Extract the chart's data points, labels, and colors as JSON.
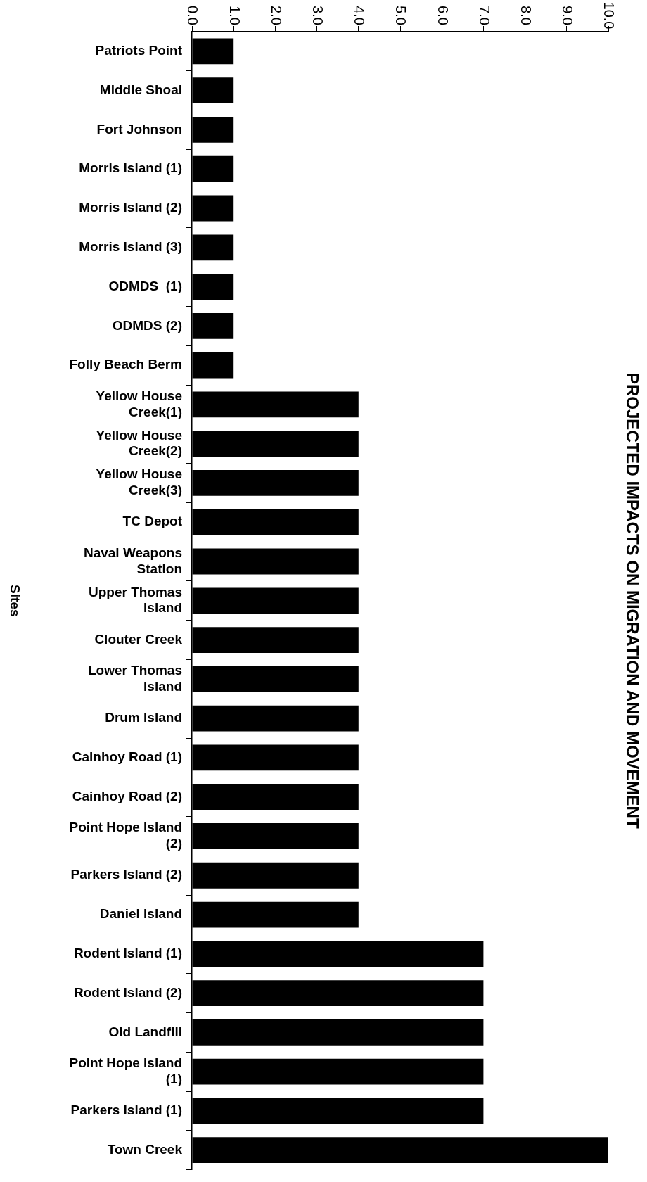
{
  "chart_data": {
    "type": "bar",
    "orientation": "horizontal",
    "title": "PROJECTED IMPACTS ON MIGRATION AND MOVEMENT",
    "ylabel": "Sites",
    "categories": [
      "Patriots Point",
      "Middle Shoal",
      "Fort Johnson",
      "Morris Island (1)",
      "Morris Island (2)",
      "Morris Island (3)",
      "ODMDS  (1)",
      "ODMDS (2)",
      "Folly Beach Berm",
      "Yellow House Creek(1)",
      "Yellow House Creek(2)",
      "Yellow House Creek(3)",
      "TC Depot",
      "Naval Weapons Station",
      "Upper Thomas Island",
      "Clouter Creek",
      "Lower Thomas Island",
      "Drum Island",
      "Cainhoy Road (1)",
      "Cainhoy Road (2)",
      "Point Hope Island (2)",
      "Parkers Island (2)",
      "Daniel Island",
      "Rodent Island (1)",
      "Rodent Island (2)",
      "Old Landfill",
      "Point Hope Island (1)",
      "Parkers Island (1)",
      "Town Creek"
    ],
    "values": [
      1,
      1,
      1,
      1,
      1,
      1,
      1,
      1,
      1,
      4,
      4,
      4,
      4,
      4,
      4,
      4,
      4,
      4,
      4,
      4,
      4,
      4,
      4,
      7,
      7,
      7,
      7,
      7,
      10
    ],
    "color": "#000000",
    "xlim": [
      0,
      10
    ],
    "xticks": [
      {
        "value": 0,
        "label": "0.0"
      },
      {
        "value": 1,
        "label": "1.0"
      },
      {
        "value": 2,
        "label": "2.0"
      },
      {
        "value": 3,
        "label": "3.0"
      },
      {
        "value": 4,
        "label": "4.0"
      },
      {
        "value": 5,
        "label": "5.0"
      },
      {
        "value": 6,
        "label": "6.0"
      },
      {
        "value": 7,
        "label": "7.0"
      },
      {
        "value": 8,
        "label": "8.0"
      },
      {
        "value": 9,
        "label": "9.0"
      },
      {
        "value": 10,
        "label": "10.0"
      }
    ],
    "grid": false
  }
}
